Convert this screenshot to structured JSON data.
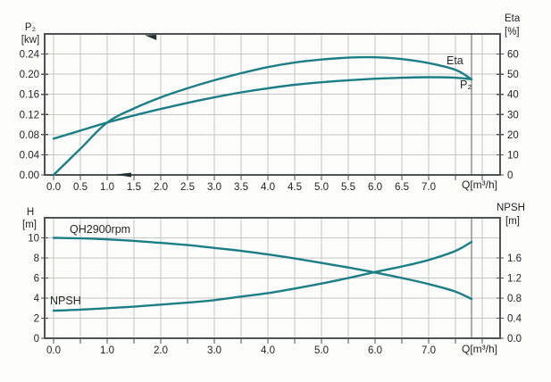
{
  "colors": {
    "curve": "#1b7e85",
    "grid": "#c3c8c4",
    "axis": "#4e5453",
    "end_line": "#5c6261",
    "text": "#1e2322",
    "background": "#fcfcfa"
  },
  "chart_data": [
    {
      "type": "line",
      "x_axis": {
        "unit_label": "Q[m³/h]",
        "min": 0,
        "max": 8.33,
        "grid_step": 0.5,
        "grid_max": 8.0,
        "curve_end": 7.8,
        "tick_labels": [
          "0.0",
          "0.5",
          "1.0",
          "1.5",
          "2.0",
          "2.5",
          "3.0",
          "3.5",
          "4.0",
          "4.5",
          "5.0",
          "5.5",
          "6.0",
          "6.5",
          "7.0"
        ],
        "label_step": 0.5
      },
      "left_axis": {
        "title": "P₂",
        "unit": "[kw]",
        "min": 0,
        "max": 0.28,
        "tick_labels": [
          "0.24",
          "0.20",
          "0.16",
          "0.12",
          "0.08",
          "0.04",
          "0.00"
        ],
        "tick_values": [
          0.24,
          0.2,
          0.16,
          0.12,
          0.08,
          0.04,
          0.0
        ]
      },
      "right_axis": {
        "title": "Eta",
        "unit": "[%]",
        "min": 0,
        "max": 70,
        "tick_labels": [
          "60",
          "50",
          "40",
          "30",
          "20",
          "10",
          "0"
        ],
        "tick_values": [
          60,
          50,
          40,
          30,
          20,
          10,
          0
        ]
      },
      "series": [
        {
          "name": "Eta",
          "label": "Eta",
          "axis": "right",
          "x": [
            0,
            0.5,
            1,
            1.5,
            2,
            2.5,
            3,
            3.5,
            4,
            4.5,
            5,
            5.5,
            6,
            6.5,
            7,
            7.5,
            7.8
          ],
          "y": [
            0,
            13,
            26,
            33,
            38.5,
            43,
            47,
            50.5,
            53.5,
            55.8,
            57.3,
            58.2,
            58.4,
            57.5,
            55.5,
            52.2,
            47.5
          ]
        },
        {
          "name": "P2",
          "label": "P₂",
          "axis": "left",
          "x": [
            0,
            0.5,
            1,
            1.5,
            2,
            2.5,
            3,
            3.5,
            4,
            4.5,
            5,
            5.5,
            6,
            6.5,
            7,
            7.5,
            7.8
          ],
          "y": [
            0.072,
            0.088,
            0.104,
            0.118,
            0.131,
            0.143,
            0.154,
            0.164,
            0.172,
            0.179,
            0.184,
            0.188,
            0.191,
            0.193,
            0.194,
            0.193,
            0.19
          ]
        }
      ],
      "arrow_markers": [
        {
          "q": 1.82,
          "pos": "top"
        },
        {
          "q": 1.3,
          "pos": "bottom"
        }
      ]
    },
    {
      "type": "line",
      "x_axis": {
        "unit_label": "Q[m³/h]",
        "min": 0,
        "max": 8.33,
        "grid_step": 0.5,
        "grid_max": 8.0,
        "curve_end": 7.8,
        "tick_labels": [
          "0.0",
          "1.0",
          "2.0",
          "3.0",
          "4.0",
          "5.0",
          "6.0",
          "7.0"
        ],
        "label_step": 1.0
      },
      "left_axis": {
        "title": "H",
        "unit": "[m]",
        "min": 0,
        "max": 12,
        "tick_labels": [
          "10",
          "8",
          "6",
          "4",
          "2",
          "0"
        ],
        "tick_values": [
          10,
          8,
          6,
          4,
          2,
          0
        ]
      },
      "right_axis": {
        "title": "NPSH",
        "unit": "[m]",
        "min": 0,
        "max": 2.4,
        "tick_labels": [
          "1.6",
          "1.2",
          "0.8",
          "0.4",
          "0.0"
        ],
        "tick_values": [
          1.6,
          1.2,
          0.8,
          0.4,
          0.0
        ]
      },
      "series": [
        {
          "name": "QH",
          "label": "QH2900rpm",
          "axis": "left",
          "x": [
            0,
            0.5,
            1,
            1.5,
            2,
            2.5,
            3,
            3.5,
            4,
            4.5,
            5,
            5.5,
            6,
            6.5,
            7,
            7.5,
            7.8
          ],
          "y": [
            10.0,
            9.95,
            9.85,
            9.7,
            9.5,
            9.28,
            9.0,
            8.7,
            8.35,
            7.95,
            7.5,
            7.05,
            6.55,
            6.0,
            5.4,
            4.65,
            3.9
          ]
        },
        {
          "name": "NPSH",
          "label": "NPSH",
          "axis": "right",
          "x": [
            0,
            0.5,
            1,
            1.5,
            2,
            2.5,
            3,
            3.5,
            4,
            4.5,
            5,
            5.5,
            6,
            6.5,
            7,
            7.5,
            7.8
          ],
          "y": [
            0.55,
            0.57,
            0.6,
            0.63,
            0.67,
            0.71,
            0.76,
            0.83,
            0.9,
            0.99,
            1.09,
            1.2,
            1.32,
            1.43,
            1.56,
            1.74,
            1.92
          ]
        }
      ],
      "arrow_markers": []
    }
  ]
}
